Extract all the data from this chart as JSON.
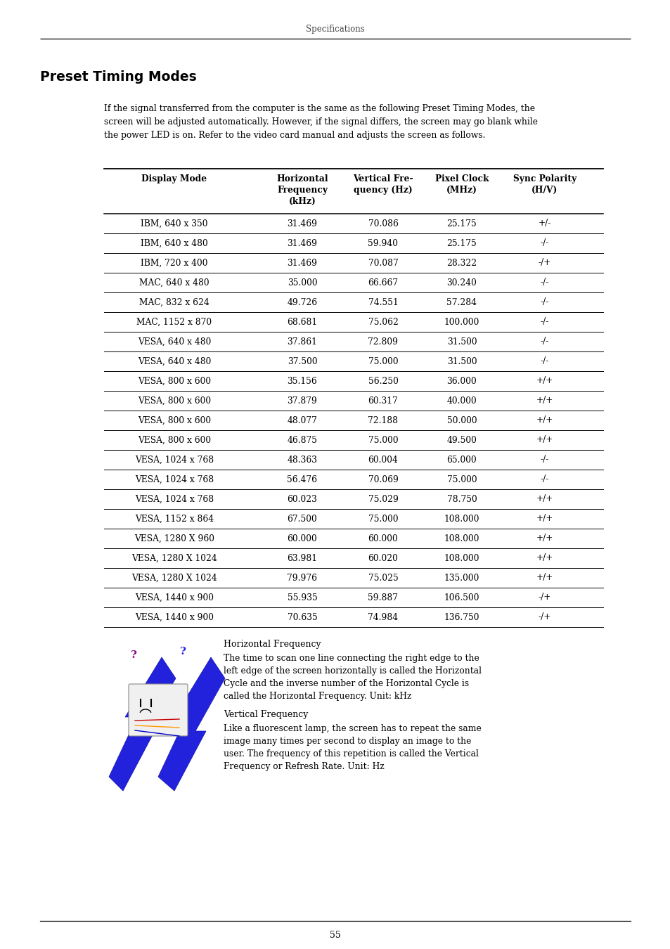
{
  "page_header": "Specifications",
  "section_title": "Preset Timing Modes",
  "intro_lines": [
    "If the signal transferred from the computer is the same as the following Preset Timing Modes, the",
    "screen will be adjusted automatically. However, if the signal differs, the screen may go blank while",
    "the power LED is on. Refer to the video card manual and adjusts the screen as follows."
  ],
  "table_header_cols": [
    [
      "Display Mode"
    ],
    [
      "Horizontal",
      "Frequency",
      "(kHz)"
    ],
    [
      "Vertical Fre-",
      "quency (Hz)"
    ],
    [
      "Pixel Clock",
      "(MHz)"
    ],
    [
      "Sync Polarity",
      "(H/V)"
    ]
  ],
  "table_rows": [
    [
      "IBM, 640 x 350",
      "31.469",
      "70.086",
      "25.175",
      "+/-"
    ],
    [
      "IBM, 640 x 480",
      "31.469",
      "59.940",
      "25.175",
      "-/-"
    ],
    [
      "IBM, 720 x 400",
      "31.469",
      "70.087",
      "28.322",
      "-/+"
    ],
    [
      "MAC, 640 x 480",
      "35.000",
      "66.667",
      "30.240",
      "-/-"
    ],
    [
      "MAC, 832 x 624",
      "49.726",
      "74.551",
      "57.284",
      "-/-"
    ],
    [
      "MAC, 1152 x 870",
      "68.681",
      "75.062",
      "100.000",
      "-/-"
    ],
    [
      "VESA, 640 x 480",
      "37.861",
      "72.809",
      "31.500",
      "-/-"
    ],
    [
      "VESA, 640 x 480",
      "37.500",
      "75.000",
      "31.500",
      "-/-"
    ],
    [
      "VESA, 800 x 600",
      "35.156",
      "56.250",
      "36.000",
      "+/+"
    ],
    [
      "VESA, 800 x 600",
      "37.879",
      "60.317",
      "40.000",
      "+/+"
    ],
    [
      "VESA, 800 x 600",
      "48.077",
      "72.188",
      "50.000",
      "+/+"
    ],
    [
      "VESA, 800 x 600",
      "46.875",
      "75.000",
      "49.500",
      "+/+"
    ],
    [
      "VESA, 1024 x 768",
      "48.363",
      "60.004",
      "65.000",
      "-/-"
    ],
    [
      "VESA, 1024 x 768",
      "56.476",
      "70.069",
      "75.000",
      "-/-"
    ],
    [
      "VESA, 1024 x 768",
      "60.023",
      "75.029",
      "78.750",
      "+/+"
    ],
    [
      "VESA, 1152 x 864",
      "67.500",
      "75.000",
      "108.000",
      "+/+"
    ],
    [
      "VESA, 1280 X 960",
      "60.000",
      "60.000",
      "108.000",
      "+/+"
    ],
    [
      "VESA, 1280 X 1024",
      "63.981",
      "60.020",
      "108.000",
      "+/+"
    ],
    [
      "VESA, 1280 X 1024",
      "79.976",
      "75.025",
      "135.000",
      "+/+"
    ],
    [
      "VESA, 1440 x 900",
      "55.935",
      "59.887",
      "106.500",
      "-/+"
    ],
    [
      "VESA, 1440 x 900",
      "70.635",
      "74.984",
      "136.750",
      "-/+"
    ]
  ],
  "horiz_freq_title": "Horizontal Frequency",
  "horiz_freq_lines": [
    "The time to scan one line connecting the right edge to the",
    "left edge of the screen horizontally is called the Horizontal",
    "Cycle and the inverse number of the Horizontal Cycle is",
    "called the Horizontal Frequency. Unit: kHz"
  ],
  "vert_freq_title": "Vertical Frequency",
  "vert_freq_lines": [
    "Like a fluorescent lamp, the screen has to repeat the same",
    "image many times per second to display an image to the",
    "user. The frequency of this repetition is called the Vertical",
    "Frequency or Refresh Rate. Unit: Hz"
  ],
  "page_number": "55"
}
